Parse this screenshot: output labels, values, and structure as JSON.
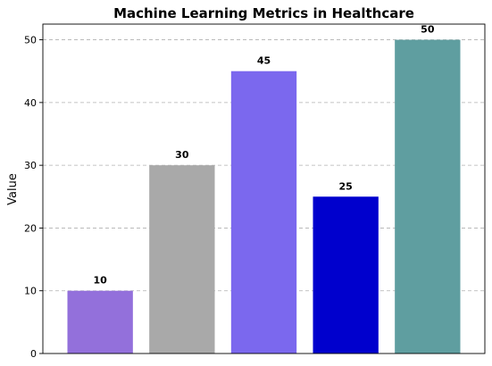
{
  "chart_data": {
    "type": "bar",
    "title": "Machine Learning Metrics in Healthcare",
    "xlabel": "",
    "ylabel": "Value",
    "categories": [
      "",
      "",
      "",
      "",
      ""
    ],
    "values": [
      10,
      30,
      45,
      25,
      50
    ],
    "data_labels": [
      "10",
      "30",
      "45",
      "25",
      "50"
    ],
    "colors": [
      "#9370DB",
      "#A9A9A9",
      "#7B68EE",
      "#0000CD",
      "#5F9EA0"
    ],
    "ylim": [
      0,
      52.5
    ],
    "yticks": [
      0,
      10,
      20,
      30,
      40,
      50
    ],
    "ytick_labels": [
      "0",
      "10",
      "20",
      "30",
      "40",
      "50"
    ],
    "grid": "horizontal-dashed",
    "legend": "none"
  }
}
